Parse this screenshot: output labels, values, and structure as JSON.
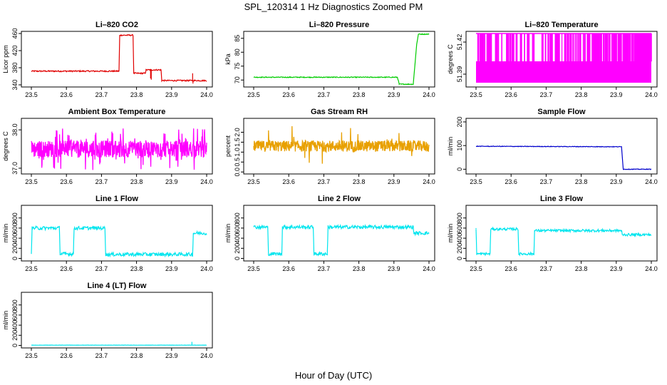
{
  "figure": {
    "title": "SPL_120314  1 Hz Diagnostics Zoomed PM",
    "xlabel": "Hour of Day (UTC)"
  },
  "chart_data": [
    {
      "type": "line",
      "title": "Li–820 CO2",
      "ylabel": "Licor ppm",
      "xlim": [
        23.5,
        24.0
      ],
      "ylim": [
        335,
        465
      ],
      "xticks": [
        "23.5",
        "23.6",
        "23.7",
        "23.8",
        "23.9",
        "24.0"
      ],
      "yticks": [
        {
          "v": 340,
          "label": "340"
        },
        {
          "v": 380,
          "label": "380"
        },
        {
          "v": 420,
          "label": "420"
        },
        {
          "v": 460,
          "label": "460"
        }
      ],
      "color": "#e00000",
      "noise": 1.5,
      "x": [
        23.5,
        23.75,
        23.752,
        23.79,
        23.792,
        23.825,
        23.827,
        23.87,
        23.872,
        24.0
      ],
      "y": [
        372,
        372,
        456,
        456,
        367,
        367,
        375,
        375,
        350,
        350
      ],
      "spikes": [
        {
          "x": 23.842,
          "y": 352
        },
        {
          "x": 23.84,
          "y": 355
        },
        {
          "x": 23.96,
          "y": 367
        },
        {
          "x": 23.961,
          "y": 343
        }
      ]
    },
    {
      "type": "line",
      "title": "Li–820 Pressure",
      "ylabel": "kPa",
      "xlim": [
        23.5,
        24.0
      ],
      "ylim": [
        67.5,
        87.5
      ],
      "xticks": [
        "23.5",
        "23.6",
        "23.7",
        "23.8",
        "23.9",
        "24.0"
      ],
      "yticks": [
        {
          "v": 70,
          "label": "70"
        },
        {
          "v": 75,
          "label": "75"
        },
        {
          "v": 80,
          "label": "80"
        },
        {
          "v": 85,
          "label": "85"
        }
      ],
      "color": "#00cc00",
      "noise": 0.15,
      "x": [
        23.5,
        23.91,
        23.915,
        23.955,
        23.965,
        23.97,
        24.0
      ],
      "y": [
        71,
        71,
        68.5,
        68.5,
        83,
        86.5,
        86.5
      ],
      "spikes": []
    },
    {
      "type": "band",
      "title": "Li–820 Temperature",
      "ylabel": "degrees C",
      "xlim": [
        23.5,
        24.0
      ],
      "ylim": [
        51.378,
        51.43
      ],
      "xticks": [
        "23.5",
        "23.6",
        "23.7",
        "23.8",
        "23.9",
        "24.0"
      ],
      "yticks": [
        {
          "v": 51.39,
          "label": "51.39"
        },
        {
          "v": 51.42,
          "label": "51.42"
        }
      ],
      "color": "#ff00ff",
      "band": [
        51.382,
        51.402
      ],
      "spikeTop": 51.428,
      "spikeCount": 140
    },
    {
      "type": "noise",
      "title": "Ambient Box Temperature",
      "ylabel": "degrees C",
      "xlim": [
        23.5,
        24.0
      ],
      "ylim": [
        36.85,
        38.3
      ],
      "xticks": [
        "23.5",
        "23.6",
        "23.7",
        "23.8",
        "23.9",
        "24.0"
      ],
      "yticks": [
        {
          "v": 37.0,
          "label": "37.0"
        },
        {
          "v": 38.0,
          "label": "38.0"
        }
      ],
      "color": "#ff00ff",
      "center": 37.5,
      "amp": 0.22,
      "spikeAmp": 0.55,
      "spikeRate": 0.15,
      "lw": 1.3
    },
    {
      "type": "noise",
      "title": "Gas Stream RH",
      "ylabel": "percent",
      "xlim": [
        23.5,
        24.0
      ],
      "ylim": [
        -0.1,
        2.7
      ],
      "xticks": [
        "23.5",
        "23.6",
        "23.7",
        "23.8",
        "23.9",
        "24.0"
      ],
      "yticks": [
        {
          "v": 0.0,
          "label": "0.0"
        },
        {
          "v": 0.5,
          "label": "0.5"
        },
        {
          "v": 1.0,
          "label": "1.0"
        },
        {
          "v": 1.5,
          "label": "1.5"
        },
        {
          "v": 2.0,
          "label": "2.0"
        }
      ],
      "color": "#e8a000",
      "center": 1.3,
      "amp": 0.28,
      "spikeAmp": 1.1,
      "spikeRate": 0.04,
      "lw": 1.3
    },
    {
      "type": "line",
      "title": "Sample Flow",
      "ylabel": "ml/min",
      "xlim": [
        23.5,
        24.0
      ],
      "ylim": [
        -20,
        215
      ],
      "xticks": [
        "23.5",
        "23.6",
        "23.7",
        "23.8",
        "23.9",
        "24.0"
      ],
      "yticks": [
        {
          "v": 0,
          "label": "0"
        },
        {
          "v": 100,
          "label": "100"
        },
        {
          "v": 200,
          "label": "200"
        }
      ],
      "color": "#0000cc",
      "noise": 1.2,
      "x": [
        23.5,
        23.915,
        23.92,
        24.0
      ],
      "y": [
        97,
        95,
        0,
        0
      ],
      "spikes": []
    },
    {
      "type": "line",
      "title": "Line 1 Flow",
      "ylabel": "ml/min",
      "xlim": [
        23.5,
        24.0
      ],
      "ylim": [
        -50,
        1050
      ],
      "xticks": [
        "23.5",
        "23.6",
        "23.7",
        "23.8",
        "23.9",
        "24.0"
      ],
      "yticks": [
        {
          "v": 0,
          "label": "0"
        },
        {
          "v": 200,
          "label": "200"
        },
        {
          "v": 400,
          "label": "400"
        },
        {
          "v": 600,
          "label": "600"
        },
        {
          "v": 800,
          "label": "800"
        }
      ],
      "color": "#00e5ee",
      "noise": 35,
      "x": [
        23.5,
        23.502,
        23.58,
        23.582,
        23.62,
        23.622,
        23.71,
        23.712,
        23.96,
        23.962,
        24.0
      ],
      "y": [
        120,
        600,
        600,
        90,
        90,
        600,
        600,
        80,
        80,
        500,
        500
      ],
      "spikes": []
    },
    {
      "type": "line",
      "title": "Line 2 Flow",
      "ylabel": "ml/min",
      "xlim": [
        23.5,
        24.0
      ],
      "ylim": [
        -50,
        1050
      ],
      "xticks": [
        "23.5",
        "23.6",
        "23.7",
        "23.8",
        "23.9",
        "24.0"
      ],
      "yticks": [
        {
          "v": 0,
          "label": "0"
        },
        {
          "v": 200,
          "label": "200"
        },
        {
          "v": 400,
          "label": "400"
        },
        {
          "v": 600,
          "label": "600"
        },
        {
          "v": 800,
          "label": "800"
        }
      ],
      "color": "#00e5ee",
      "noise": 35,
      "x": [
        23.5,
        23.54,
        23.542,
        23.58,
        23.582,
        23.67,
        23.672,
        23.71,
        23.712,
        23.955,
        23.957,
        24.0
      ],
      "y": [
        620,
        620,
        90,
        90,
        620,
        620,
        90,
        90,
        620,
        620,
        500,
        500
      ],
      "spikes": []
    },
    {
      "type": "line",
      "title": "Line 3 Flow",
      "ylabel": "ml/min",
      "xlim": [
        23.5,
        24.0
      ],
      "ylim": [
        -50,
        1050
      ],
      "xticks": [
        "23.5",
        "23.6",
        "23.7",
        "23.8",
        "23.9",
        "24.0"
      ],
      "yticks": [
        {
          "v": 0,
          "label": "0"
        },
        {
          "v": 200,
          "label": "200"
        },
        {
          "v": 400,
          "label": "400"
        },
        {
          "v": 600,
          "label": "600"
        },
        {
          "v": 800,
          "label": "800"
        }
      ],
      "color": "#00e5ee",
      "noise": 25,
      "x": [
        23.5,
        23.502,
        23.54,
        23.542,
        23.58,
        23.582,
        23.62,
        23.622,
        23.665,
        23.667,
        23.915,
        23.917,
        24.0
      ],
      "y": [
        580,
        90,
        90,
        580,
        580,
        580,
        580,
        90,
        90,
        550,
        550,
        470,
        470
      ],
      "spikes": [
        {
          "x": 23.5,
          "y": 600
        }
      ]
    },
    {
      "type": "line",
      "title": "Line 4 (LT) Flow",
      "ylabel": "ml/min",
      "xlim": [
        23.5,
        24.0
      ],
      "ylim": [
        -50,
        1050
      ],
      "xticks": [
        "23.5",
        "23.6",
        "23.7",
        "23.8",
        "23.9",
        "24.0"
      ],
      "yticks": [
        {
          "v": 0,
          "label": "0"
        },
        {
          "v": 200,
          "label": "200"
        },
        {
          "v": 400,
          "label": "400"
        },
        {
          "v": 600,
          "label": "600"
        },
        {
          "v": 800,
          "label": "800"
        }
      ],
      "color": "#00e5ee",
      "noise": 2,
      "x": [
        23.5,
        24.0
      ],
      "y": [
        5,
        5
      ],
      "spikes": [
        {
          "x": 23.958,
          "y": 70
        }
      ]
    }
  ]
}
